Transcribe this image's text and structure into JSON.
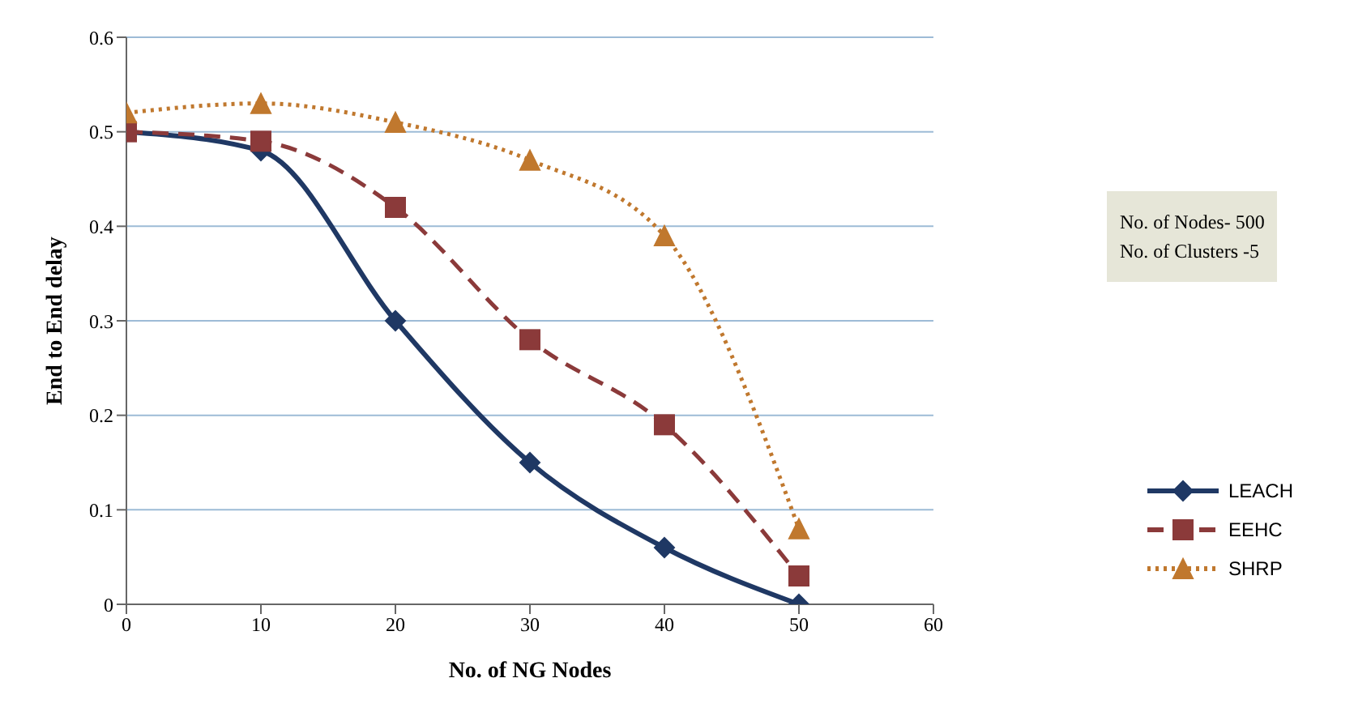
{
  "chart_data": {
    "type": "line",
    "xlabel": "No. of NG Nodes",
    "ylabel": "End to End delay",
    "x": [
      0,
      10,
      20,
      30,
      40,
      50
    ],
    "series": [
      {
        "name": "LEACH",
        "color": "#1f3864",
        "values": [
          0.5,
          0.48,
          0.3,
          0.15,
          0.06,
          0
        ],
        "marker": "diamond",
        "line_style": "solid"
      },
      {
        "name": "EEHC",
        "color": "#8b3a3a",
        "values": [
          0.5,
          0.49,
          0.42,
          0.28,
          0.19,
          0.03
        ],
        "marker": "square",
        "line_style": "dashed"
      },
      {
        "name": "SHRP",
        "color": "#c0782e",
        "values": [
          0.52,
          0.53,
          0.51,
          0.47,
          0.39,
          0.08
        ],
        "marker": "triangle",
        "line_style": "dotted"
      }
    ],
    "xlim": [
      0,
      60
    ],
    "xticks": [
      0,
      10,
      20,
      30,
      40,
      50,
      60
    ],
    "ylim": [
      0,
      0.6
    ],
    "yticks": [
      0,
      0.1,
      0.2,
      0.3,
      0.4,
      0.5,
      0.6
    ],
    "grid": "y",
    "legend": "bottom right",
    "annotations": [
      "No. of Nodes- 500",
      "No. of Clusters -5"
    ]
  }
}
